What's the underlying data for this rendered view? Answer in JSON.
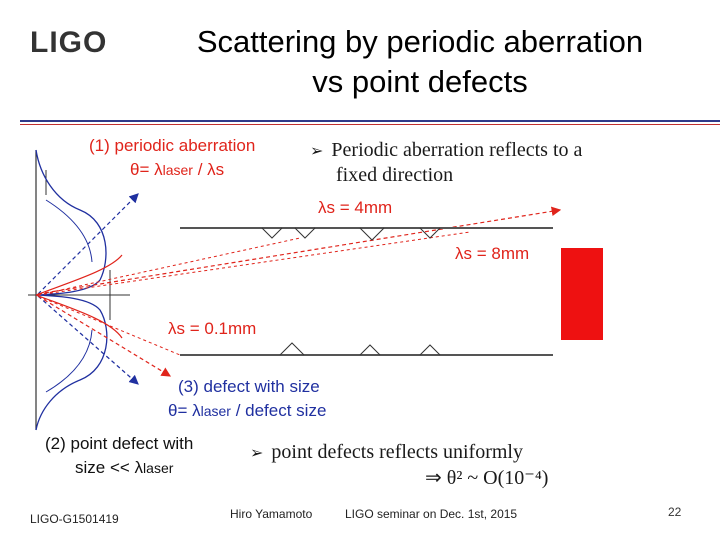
{
  "header": {
    "logo": "LIGO",
    "title_line1": "Scattering by periodic aberration",
    "title_line2": "vs point defects"
  },
  "labels": {
    "periodic_title": "(1) periodic aberration",
    "periodic_theta_prefix": "θ= λ",
    "periodic_theta_sub": "laser",
    "periodic_theta_suffix": " / λs",
    "lambda_4mm": "λs = 4mm",
    "lambda_8mm": "λs = 8mm",
    "lambda_01mm": "λs = 0.1mm",
    "defect_title": "(3) defect with size",
    "defect_theta_prefix": "θ= λ",
    "defect_theta_sub": "laser",
    "defect_theta_suffix": " / defect size",
    "point_defect_line1": "(2) point defect with",
    "point_defect_line2_prefix": "size << λ",
    "point_defect_line2_sub": "laser"
  },
  "bullets": {
    "b1_line1": "Periodic aberration reflects to a",
    "b1_line2": "fixed direction",
    "b2_line1": "point defects reflects uniformly",
    "b2_line2": "⇒ θ² ~ O(10⁻⁴)"
  },
  "footer": {
    "doc_id": "LIGO-G1501419",
    "author": "Hiro Yamamoto",
    "event": "LIGO seminar on Dec. 1st, 2015",
    "page": "22"
  },
  "colors": {
    "red": "#e0241b",
    "blue": "#2030a0",
    "rule": "#2f3a8a",
    "box": "#ee1111"
  }
}
